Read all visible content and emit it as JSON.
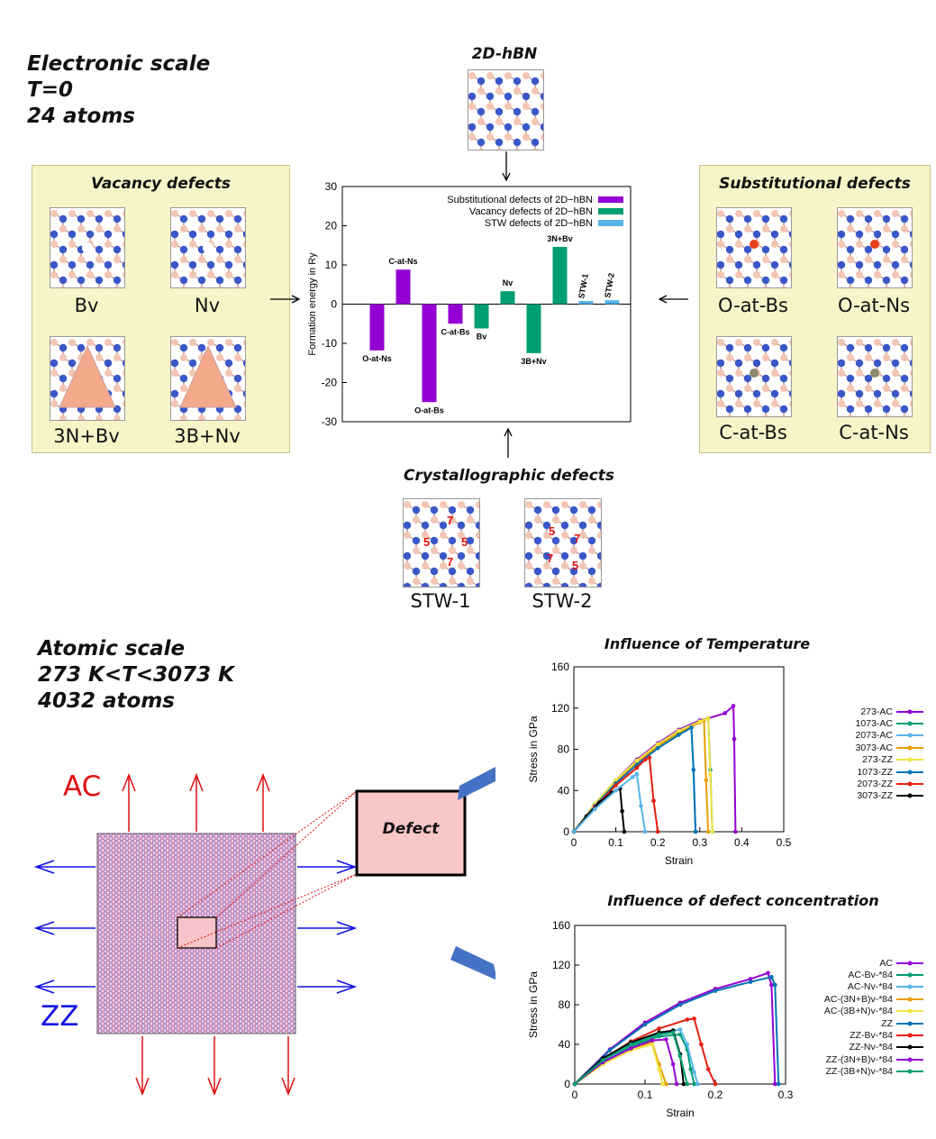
{
  "electronic": {
    "title_lines": [
      "Electronic scale",
      "T=0",
      "24 atoms"
    ]
  },
  "atomic": {
    "title_lines": [
      "Atomic scale",
      "273 K<T<3073 K",
      "4032  atoms"
    ]
  },
  "hbn": {
    "title": "2D-hBN"
  },
  "vacancy": {
    "title": "Vacancy defects",
    "labels": [
      "Bv",
      "Nv",
      "3N+Bv",
      "3B+Nv"
    ]
  },
  "substitutional": {
    "title": "Substitutional defects",
    "labels": [
      "O-at-Bs",
      "O-at-Ns",
      "C-at-Bs",
      "C-at-Ns"
    ]
  },
  "crystallographic": {
    "title": "Crystallographic defects",
    "labels": [
      "STW-1",
      "STW-2"
    ],
    "ring_labels": [
      "7",
      "5",
      "5",
      "7"
    ]
  },
  "stretch": {
    "ac_label": "AC",
    "zz_label": "ZZ",
    "defect_label": "Defect"
  },
  "colors": {
    "substitutional": "#9400d3",
    "vacancy": "#009e73",
    "stw": "#56b4e9",
    "boron": "#f3c6b4",
    "nitrogen": "#3a57c8",
    "panel": "#f7f4c8",
    "ac_arrow": "#e01010",
    "zz_arrow": "#1010e0",
    "defect_fill": "#f8c8c8"
  },
  "chart_data": [
    {
      "type": "bar",
      "ylabel": "Formation energy in Ry",
      "ylim": [
        -30,
        30
      ],
      "yticks": [
        -30,
        -20,
        -10,
        0,
        10,
        20,
        30
      ],
      "legend": [
        {
          "name": "Substitutional defects of 2D−hBN",
          "color": "#9400d3"
        },
        {
          "name": "Vacancy defects of 2D−hBN",
          "color": "#009e73"
        },
        {
          "name": "STW defects of 2D−hBN",
          "color": "#56b4e9"
        }
      ],
      "bars": [
        {
          "label": "O-at-Ns",
          "value": -11.8,
          "group": 0
        },
        {
          "label": "C-at-Ns",
          "value": 8.8,
          "group": 0
        },
        {
          "label": "O-at-Bs",
          "value": -25,
          "group": 0
        },
        {
          "label": "C-at-Bs",
          "value": -5,
          "group": 0
        },
        {
          "label": "Bv",
          "value": -6.2,
          "group": 1
        },
        {
          "label": "Nv",
          "value": 3.3,
          "group": 1
        },
        {
          "label": "3B+Nv",
          "value": -12.5,
          "group": 1
        },
        {
          "label": "3N+Bv",
          "value": 14.6,
          "group": 1
        },
        {
          "label": "STW-1",
          "value": 0.8,
          "group": 2
        },
        {
          "label": "STW-2",
          "value": 1.0,
          "group": 2
        }
      ]
    },
    {
      "type": "line",
      "title": "Influence of Temperature",
      "xlabel": "Strain",
      "ylabel": "Stress in GPa",
      "xlim": [
        0,
        0.5
      ],
      "ylim": [
        0,
        160
      ],
      "xticks": [
        0,
        0.1,
        0.2,
        0.3,
        0.4,
        0.5
      ],
      "yticks": [
        0,
        40,
        80,
        120,
        160
      ],
      "series": [
        {
          "name": "273-AC",
          "color": "#9400d3",
          "x": [
            0,
            0.05,
            0.1,
            0.15,
            0.2,
            0.25,
            0.3,
            0.32,
            0.36,
            0.38,
            0.382,
            0.385
          ],
          "y": [
            0,
            27,
            50,
            70,
            86,
            99,
            108,
            110,
            115,
            122,
            90,
            0
          ]
        },
        {
          "name": "1073-AC",
          "color": "#009e73",
          "x": [
            0,
            0.05,
            0.1,
            0.15,
            0.2,
            0.25,
            0.3,
            0.32,
            0.325,
            0.33
          ],
          "y": [
            0,
            26,
            49,
            68,
            84,
            97,
            107,
            110,
            60,
            0
          ]
        },
        {
          "name": "2073-AC",
          "color": "#56b4e9",
          "x": [
            0,
            0.05,
            0.1,
            0.15,
            0.2,
            0.25,
            0.28,
            0.285,
            0.29
          ],
          "y": [
            0,
            25,
            48,
            66,
            82,
            95,
            102,
            60,
            0
          ]
        },
        {
          "name": "3073-AC",
          "color": "#e69f00",
          "x": [
            0,
            0.05,
            0.1,
            0.15,
            0.2,
            0.25,
            0.3,
            0.31,
            0.315,
            0.32
          ],
          "y": [
            0,
            26,
            49,
            68,
            83,
            96,
            106,
            108,
            50,
            0
          ]
        },
        {
          "name": "273-ZZ",
          "color": "#f0e442",
          "x": [
            0,
            0.05,
            0.1,
            0.15,
            0.2,
            0.25,
            0.3,
            0.32,
            0.325,
            0.33
          ],
          "y": [
            0,
            27,
            50,
            69,
            85,
            98,
            107,
            110,
            55,
            0
          ]
        },
        {
          "name": "1073-ZZ",
          "color": "#0072b2",
          "x": [
            0,
            0.05,
            0.1,
            0.15,
            0.2,
            0.25,
            0.28,
            0.285,
            0.29
          ],
          "y": [
            0,
            25,
            47,
            65,
            81,
            94,
            101,
            60,
            0
          ]
        },
        {
          "name": "2073-ZZ",
          "color": "#e51e10",
          "x": [
            0,
            0.05,
            0.1,
            0.15,
            0.17,
            0.18,
            0.19,
            0.2
          ],
          "y": [
            0,
            24,
            45,
            62,
            70,
            72,
            30,
            0
          ]
        },
        {
          "name": "3073-ZZ",
          "color": "#000000",
          "x": [
            0,
            0.03,
            0.06,
            0.09,
            0.11,
            0.115,
            0.12
          ],
          "y": [
            0,
            15,
            28,
            38,
            42,
            20,
            0
          ]
        },
        {
          "name": "",
          "color": "#56b4e9",
          "x": [
            0,
            0.05,
            0.1,
            0.14,
            0.15,
            0.16,
            0.17
          ],
          "y": [
            0,
            22,
            40,
            53,
            56,
            25,
            0
          ]
        }
      ]
    },
    {
      "type": "line",
      "title": "Influence of defect concentration",
      "xlabel": "Strain",
      "ylabel": "Stress in GPa",
      "xlim": [
        0,
        0.3
      ],
      "ylim": [
        0,
        160
      ],
      "xticks": [
        0,
        0.1,
        0.2,
        0.3
      ],
      "yticks": [
        0,
        40,
        80,
        120,
        160
      ],
      "series": [
        {
          "name": "AC",
          "color": "#9400d3",
          "x": [
            0,
            0.05,
            0.1,
            0.15,
            0.2,
            0.25,
            0.275,
            0.28,
            0.285
          ],
          "y": [
            0,
            35,
            62,
            82,
            96,
            106,
            112,
            100,
            0
          ]
        },
        {
          "name": "AC-Bv-*84",
          "color": "#009e73",
          "x": [
            0,
            0.04,
            0.08,
            0.12,
            0.15,
            0.16,
            0.165,
            0.17
          ],
          "y": [
            0,
            22,
            38,
            48,
            50,
            35,
            15,
            0
          ]
        },
        {
          "name": "AC-Nv-*84",
          "color": "#56b4e9",
          "x": [
            0,
            0.04,
            0.08,
            0.12,
            0.15,
            0.16,
            0.17,
            0.175
          ],
          "y": [
            0,
            23,
            40,
            51,
            55,
            40,
            12,
            0
          ]
        },
        {
          "name": "AC-(3N+B)v-*84",
          "color": "#e69f00",
          "x": [
            0,
            0.04,
            0.08,
            0.11,
            0.12,
            0.13
          ],
          "y": [
            0,
            22,
            36,
            42,
            20,
            0
          ]
        },
        {
          "name": "AC-(3B+N)v-*84",
          "color": "#f0e442",
          "x": [
            0,
            0.04,
            0.08,
            0.11,
            0.12,
            0.125
          ],
          "y": [
            0,
            20,
            34,
            40,
            15,
            0
          ]
        },
        {
          "name": "ZZ",
          "color": "#0072b2",
          "x": [
            0,
            0.05,
            0.1,
            0.15,
            0.2,
            0.25,
            0.28,
            0.285,
            0.29
          ],
          "y": [
            0,
            34,
            60,
            80,
            94,
            103,
            108,
            100,
            0
          ]
        },
        {
          "name": "ZZ-Bv-*84",
          "color": "#e51e10",
          "x": [
            0,
            0.04,
            0.08,
            0.12,
            0.16,
            0.17,
            0.18,
            0.19,
            0.2
          ],
          "y": [
            0,
            25,
            43,
            56,
            65,
            66,
            40,
            15,
            0
          ]
        },
        {
          "name": "ZZ-Nv-*84",
          "color": "#000000",
          "x": [
            0,
            0.04,
            0.08,
            0.12,
            0.14,
            0.15,
            0.155
          ],
          "y": [
            0,
            26,
            42,
            52,
            54,
            30,
            0
          ]
        },
        {
          "name": "ZZ-(3N+B)v-*84",
          "color": "#9400d3",
          "x": [
            0,
            0.04,
            0.08,
            0.11,
            0.13,
            0.14,
            0.145
          ],
          "y": [
            0,
            22,
            36,
            44,
            45,
            20,
            0
          ]
        },
        {
          "name": "ZZ-(3B+N)v-*84",
          "color": "#009e73",
          "x": [
            0,
            0.04,
            0.08,
            0.12,
            0.14,
            0.15,
            0.16
          ],
          "y": [
            0,
            24,
            40,
            50,
            52,
            28,
            0
          ]
        }
      ]
    }
  ]
}
